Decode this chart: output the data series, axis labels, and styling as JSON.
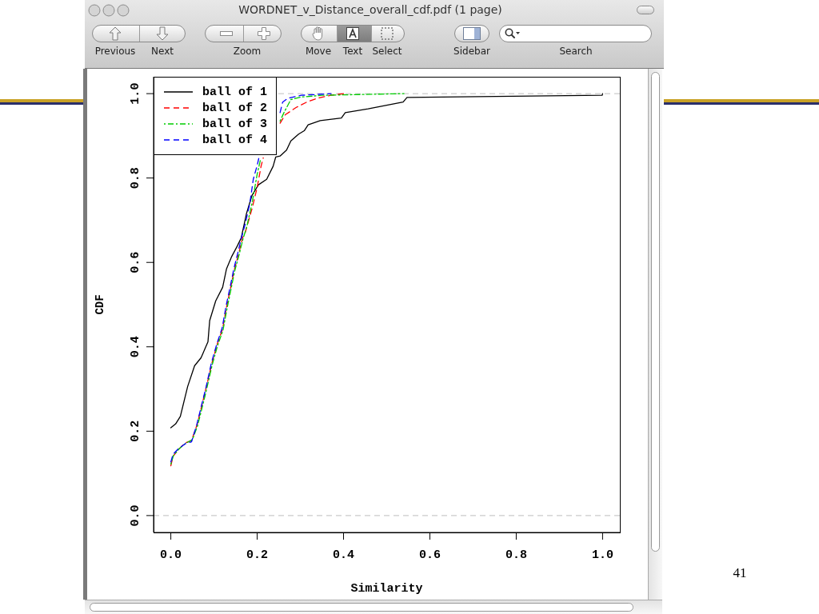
{
  "chart_data": {
    "type": "line",
    "xlabel": "Similarity",
    "ylabel": "CDF",
    "annotations": [
      "WORDNET_v_Distance_overall_cdf.pdf (1 page)",
      "Previous",
      "Next",
      "Zoom",
      "Move",
      "Text",
      "Select",
      "Sidebar",
      "Search",
      "41"
    ],
    "xlim": [
      -0.04,
      1.04
    ],
    "ylim": [
      -0.04,
      1.04
    ],
    "xticks": [
      {
        "value": 0,
        "label": "0.0"
      },
      0.2,
      0.4,
      0.6,
      0.8,
      {
        "value": 1,
        "label": "1.0"
      }
    ],
    "yticks": [
      {
        "value": 0,
        "label": "0.0"
      },
      0.2,
      0.4,
      0.6,
      0.8,
      {
        "value": 1,
        "label": "1.0"
      }
    ],
    "legend": "top left",
    "ref_lines": [
      {
        "axis": "y",
        "value": 0,
        "color": "#bebebe",
        "line_style": "dashed"
      },
      {
        "axis": "y",
        "value": 1,
        "color": "#bebebe",
        "line_style": "dashed"
      }
    ],
    "series": [
      {
        "name": "ball of 1",
        "color": "#000000",
        "line_style": "solid",
        "x": [
          0,
          0.011,
          0.022,
          0.039,
          0.055,
          0.07,
          0.086,
          0.09,
          0.104,
          0.12,
          0.129,
          0.141,
          0.154,
          0.163,
          0.175,
          0.188,
          0.203,
          0.222,
          0.237,
          0.243,
          0.253,
          0.268,
          0.278,
          0.296,
          0.309,
          0.318,
          0.346,
          0.395,
          0.404,
          0.457,
          0.538,
          0.547,
          0.999,
          1
        ],
        "values": [
          0.208,
          0.217,
          0.235,
          0.306,
          0.355,
          0.374,
          0.412,
          0.462,
          0.509,
          0.541,
          0.585,
          0.614,
          0.639,
          0.658,
          0.715,
          0.759,
          0.784,
          0.797,
          0.828,
          0.85,
          0.852,
          0.866,
          0.888,
          0.904,
          0.912,
          0.926,
          0.936,
          0.942,
          0.955,
          0.964,
          0.98,
          0.991,
          0.996,
          1
        ]
      },
      {
        "name": "ball of 2",
        "color": "#ff0000",
        "line_style": "dashed",
        "x": [
          0,
          0.005,
          0.017,
          0.033,
          0.048,
          0.061,
          0.073,
          0.082,
          0.095,
          0.107,
          0.12,
          0.129,
          0.138,
          0.147,
          0.157,
          0.166,
          0.172,
          0.188,
          0.2,
          0.209,
          0.214,
          0.23,
          0.253,
          0.265,
          0.29,
          0.315,
          0.339,
          0.37,
          0.4
        ],
        "values": [
          0.118,
          0.14,
          0.156,
          0.172,
          0.178,
          0.216,
          0.266,
          0.304,
          0.361,
          0.405,
          0.443,
          0.494,
          0.538,
          0.582,
          0.62,
          0.658,
          0.67,
          0.727,
          0.778,
          0.828,
          0.848,
          null,
          0.93,
          0.95,
          0.967,
          0.98,
          0.989,
          0.996,
          1
        ]
      },
      {
        "name": "ball of 3",
        "color": "#00cd00",
        "line_style": "dotted",
        "x": [
          0,
          0.006,
          0.018,
          0.034,
          0.05,
          0.062,
          0.074,
          0.083,
          0.096,
          0.108,
          0.121,
          0.13,
          0.139,
          0.148,
          0.158,
          0.167,
          0.176,
          0.188,
          0.2,
          0.208,
          0.23,
          0.253,
          0.262,
          0.278,
          0.302,
          0.35,
          0.54
        ],
        "values": [
          0.122,
          0.142,
          0.157,
          0.171,
          0.18,
          0.213,
          0.262,
          0.3,
          0.358,
          0.402,
          0.44,
          0.49,
          0.535,
          0.58,
          0.618,
          0.655,
          0.685,
          0.74,
          0.809,
          0.845,
          null,
          0.935,
          0.955,
          0.986,
          0.992,
          0.996,
          1
        ]
      },
      {
        "name": "ball of 4",
        "color": "#0000ff",
        "line_style": "dashed",
        "x": [
          0,
          0.005,
          0.017,
          0.033,
          0.048,
          0.06,
          0.072,
          0.082,
          0.094,
          0.106,
          0.119,
          0.128,
          0.137,
          0.146,
          0.155,
          0.164,
          0.172,
          0.183,
          0.191,
          0.2,
          0.204,
          0.23,
          0.253,
          0.259,
          0.271,
          0.302,
          0.371
        ],
        "values": [
          0.127,
          0.145,
          0.158,
          0.17,
          0.175,
          0.215,
          0.265,
          0.306,
          0.362,
          0.405,
          0.445,
          0.497,
          0.54,
          0.585,
          0.622,
          0.66,
          0.69,
          0.74,
          0.797,
          0.83,
          0.848,
          null,
          0.955,
          0.98,
          0.989,
          0.996,
          1
        ]
      }
    ]
  }
}
